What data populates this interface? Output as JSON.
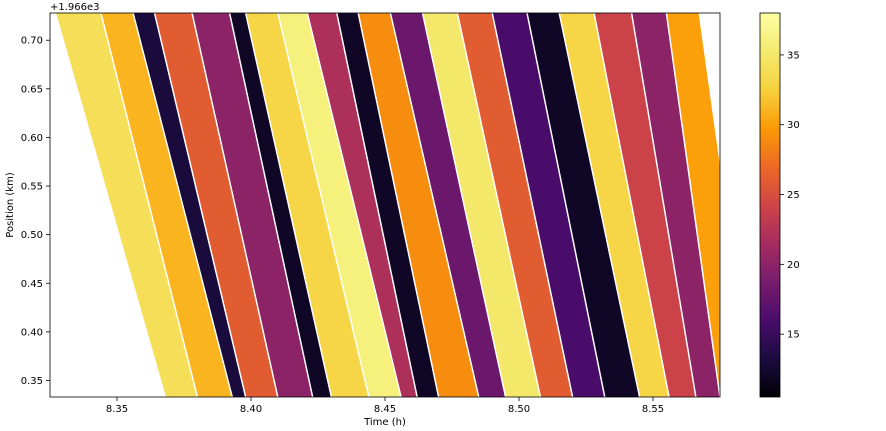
{
  "chart_data": {
    "type": "heatmap",
    "title": "",
    "xlabel": "Time (h)",
    "ylabel": "Position (km)",
    "y_offset_label": "+1.966e3",
    "xlim": [
      8.325,
      8.575
    ],
    "ylim": [
      0.333,
      0.728
    ],
    "x_ticks": [
      {
        "value": 8.35,
        "label": "8.35"
      },
      {
        "value": 8.4,
        "label": "8.40"
      },
      {
        "value": 8.45,
        "label": "8.45"
      },
      {
        "value": 8.5,
        "label": "8.50"
      },
      {
        "value": 8.55,
        "label": "8.55"
      }
    ],
    "y_ticks": [
      {
        "value": 0.35,
        "label": "0.35"
      },
      {
        "value": 0.4,
        "label": "0.40"
      },
      {
        "value": 0.45,
        "label": "0.45"
      },
      {
        "value": 0.5,
        "label": "0.50"
      },
      {
        "value": 0.55,
        "label": "0.55"
      },
      {
        "value": 0.6,
        "label": "0.60"
      },
      {
        "value": 0.65,
        "label": "0.65"
      },
      {
        "value": 0.7,
        "label": "0.70"
      }
    ],
    "colormap": "inferno",
    "colorbar": {
      "range": [
        10.5,
        38
      ],
      "ticks": [
        {
          "value": 15,
          "label": "15"
        },
        {
          "value": 20,
          "label": "20"
        },
        {
          "value": 25,
          "label": "25"
        },
        {
          "value": 30,
          "label": "30"
        },
        {
          "value": 35,
          "label": "35"
        }
      ]
    },
    "grid": false,
    "legend": "none",
    "bands": [
      {
        "t_bottom": 8.368,
        "t_top": 8.327,
        "value": 34
      },
      {
        "t_bottom": 8.38,
        "t_top": 8.344,
        "value": 31
      },
      {
        "t_bottom": 8.393,
        "t_top": 8.356,
        "value": 13
      },
      {
        "t_bottom": 8.398,
        "t_top": 8.364,
        "value": 26
      },
      {
        "t_bottom": 8.41,
        "t_top": 8.378,
        "value": 20
      },
      {
        "t_bottom": 8.423,
        "t_top": 8.392,
        "value": 12
      },
      {
        "t_bottom": 8.43,
        "t_top": 8.398,
        "value": 33
      },
      {
        "t_bottom": 8.444,
        "t_top": 8.41,
        "value": 36
      },
      {
        "t_bottom": 8.456,
        "t_top": 8.421,
        "value": 22
      },
      {
        "t_bottom": 8.462,
        "t_top": 8.432,
        "value": 12
      },
      {
        "t_bottom": 8.47,
        "t_top": 8.44,
        "value": 29
      },
      {
        "t_bottom": 8.485,
        "t_top": 8.452,
        "value": 18
      },
      {
        "t_bottom": 8.495,
        "t_top": 8.464,
        "value": 35
      },
      {
        "t_bottom": 8.508,
        "t_top": 8.477,
        "value": 26
      },
      {
        "t_bottom": 8.52,
        "t_top": 8.49,
        "value": 16
      },
      {
        "t_bottom": 8.532,
        "t_top": 8.503,
        "value": 12
      },
      {
        "t_bottom": 8.545,
        "t_top": 8.515,
        "value": 33
      },
      {
        "t_bottom": 8.556,
        "t_top": 8.528,
        "value": 24
      },
      {
        "t_bottom": 8.566,
        "t_top": 8.542,
        "value": 20
      },
      {
        "t_bottom": 8.575,
        "t_top": 8.555,
        "value": 30
      }
    ]
  }
}
